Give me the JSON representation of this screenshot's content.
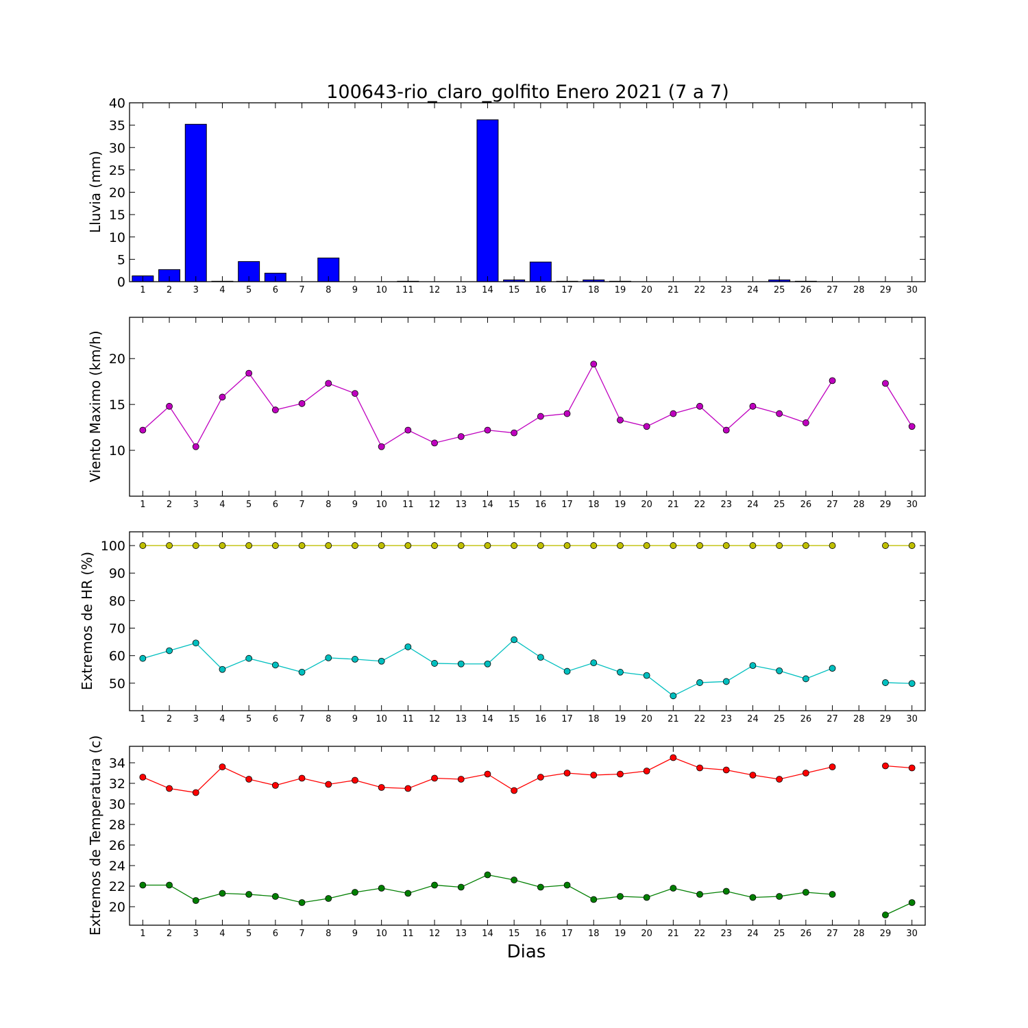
{
  "figure": {
    "title": "100643-rio_claro_golfito Enero 2021  (7 a 7)",
    "xlabel": "Dias"
  },
  "chart_data": [
    {
      "type": "bar",
      "ylabel": "Lluvia (mm)",
      "categories": [
        1,
        2,
        3,
        4,
        5,
        6,
        7,
        8,
        9,
        10,
        11,
        12,
        13,
        14,
        15,
        16,
        17,
        18,
        19,
        20,
        21,
        22,
        23,
        24,
        25,
        26,
        27,
        28,
        29,
        30
      ],
      "values": [
        1.3,
        2.7,
        35.2,
        0.1,
        4.5,
        1.9,
        0.0,
        5.3,
        0.0,
        0.0,
        0.1,
        0.0,
        0.0,
        36.2,
        0.4,
        4.4,
        0.1,
        0.4,
        0.1,
        0.0,
        0.0,
        0.0,
        0.0,
        0.0,
        0.4,
        0.1,
        0.0,
        0.0,
        0.0,
        0.0
      ],
      "xlim": [
        0.5,
        30.5
      ],
      "ylim": [
        0,
        40
      ],
      "yticks": [
        0,
        5,
        10,
        15,
        20,
        25,
        30,
        35,
        40
      ],
      "colors": {
        "bar": "#0000ff"
      }
    },
    {
      "type": "line",
      "ylabel": "Viento Maximo (km/h)",
      "x": [
        1,
        2,
        3,
        4,
        5,
        6,
        7,
        8,
        9,
        10,
        11,
        12,
        13,
        14,
        15,
        16,
        17,
        18,
        19,
        20,
        21,
        22,
        23,
        24,
        25,
        26,
        27,
        28,
        29,
        30
      ],
      "series": [
        {
          "values": [
            12.2,
            14.8,
            10.4,
            15.8,
            18.4,
            14.4,
            15.1,
            17.3,
            16.2,
            10.4,
            12.2,
            10.8,
            11.5,
            12.2,
            11.9,
            13.7,
            14.0,
            19.4,
            13.3,
            12.6,
            14.0,
            14.8,
            12.2,
            14.8,
            14.0,
            13.0,
            17.6,
            null,
            17.3,
            12.6
          ],
          "color": "#bf00bf"
        }
      ],
      "xlim": [
        0.5,
        30.5
      ],
      "ylim": [
        5,
        24.5
      ],
      "yticks": [
        10,
        15,
        20
      ]
    },
    {
      "type": "line",
      "ylabel": "Extremos de HR (%)",
      "x": [
        1,
        2,
        3,
        4,
        5,
        6,
        7,
        8,
        9,
        10,
        11,
        12,
        13,
        14,
        15,
        16,
        17,
        18,
        19,
        20,
        21,
        22,
        23,
        24,
        25,
        26,
        27,
        28,
        29,
        30
      ],
      "series": [
        {
          "values": [
            100,
            100,
            100,
            100,
            100,
            100,
            100,
            100,
            100,
            100,
            100,
            100,
            100,
            100,
            100,
            100,
            100,
            100,
            100,
            100,
            100,
            100,
            100,
            100,
            100,
            100,
            100,
            null,
            100,
            100
          ],
          "color": "#bfbf00"
        },
        {
          "values": [
            59,
            61.8,
            64.6,
            55,
            59,
            56.6,
            54,
            59.2,
            58.7,
            58,
            63.2,
            57.2,
            57,
            57,
            65.8,
            59.4,
            54.3,
            57.4,
            54,
            52.8,
            45.4,
            50.2,
            50.6,
            56.4,
            54.5,
            51.6,
            55.4,
            null,
            50.2,
            49.9
          ],
          "color": "#00bfbf"
        }
      ],
      "xlim": [
        0.5,
        30.5
      ],
      "ylim": [
        40,
        105
      ],
      "yticks": [
        50,
        60,
        70,
        80,
        90,
        100
      ]
    },
    {
      "type": "line",
      "ylabel": "Extremos de Temperatura (c)",
      "x": [
        1,
        2,
        3,
        4,
        5,
        6,
        7,
        8,
        9,
        10,
        11,
        12,
        13,
        14,
        15,
        16,
        17,
        18,
        19,
        20,
        21,
        22,
        23,
        24,
        25,
        26,
        27,
        28,
        29,
        30
      ],
      "series": [
        {
          "values": [
            32.6,
            31.5,
            31.1,
            33.6,
            32.4,
            31.8,
            32.5,
            31.9,
            32.3,
            31.6,
            31.5,
            32.5,
            32.4,
            32.9,
            31.3,
            32.6,
            33.0,
            32.8,
            32.9,
            33.2,
            34.5,
            33.5,
            33.3,
            32.8,
            32.4,
            33.0,
            33.6,
            null,
            33.7,
            33.5
          ],
          "color": "#ff0000"
        },
        {
          "values": [
            22.1,
            22.1,
            20.6,
            21.3,
            21.2,
            21.0,
            20.4,
            20.8,
            21.4,
            21.8,
            21.3,
            22.1,
            21.9,
            23.1,
            22.6,
            21.9,
            22.1,
            20.7,
            21.0,
            20.9,
            21.8,
            21.2,
            21.5,
            20.9,
            21.0,
            21.4,
            21.2,
            null,
            19.2,
            20.4
          ],
          "color": "#007f00"
        }
      ],
      "xlim": [
        0.5,
        30.5
      ],
      "ylim": [
        18.2,
        35.6
      ],
      "yticks": [
        20,
        22,
        24,
        26,
        28,
        30,
        32,
        34
      ]
    }
  ]
}
